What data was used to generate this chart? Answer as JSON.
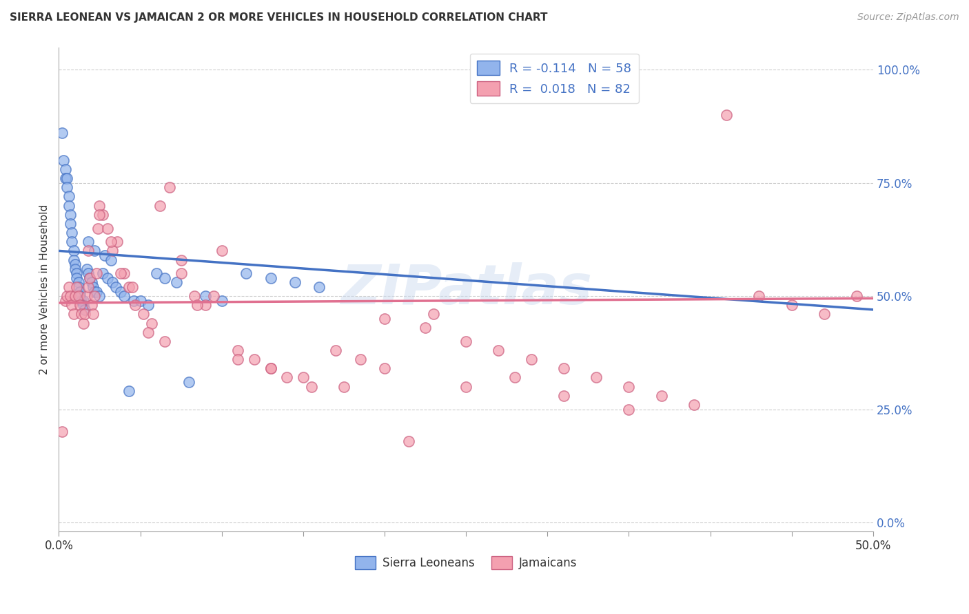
{
  "title": "SIERRA LEONEAN VS JAMAICAN 2 OR MORE VEHICLES IN HOUSEHOLD CORRELATION CHART",
  "source": "Source: ZipAtlas.com",
  "ylabel": "2 or more Vehicles in Household",
  "color_sierra": "#92B4EC",
  "color_jamaican": "#F4A0B0",
  "trendline_sierra_color": "#4472C4",
  "trendline_jamaican_color": "#E07090",
  "watermark": "ZIPatlas",
  "sierra_R": -0.114,
  "sierra_N": 58,
  "jamaican_R": 0.018,
  "jamaican_N": 82,
  "sierra_x": [
    0.002,
    0.003,
    0.004,
    0.004,
    0.005,
    0.005,
    0.006,
    0.006,
    0.007,
    0.007,
    0.008,
    0.008,
    0.009,
    0.009,
    0.01,
    0.01,
    0.011,
    0.011,
    0.012,
    0.012,
    0.013,
    0.013,
    0.014,
    0.015,
    0.015,
    0.016,
    0.017,
    0.018,
    0.019,
    0.02,
    0.021,
    0.022,
    0.023,
    0.025,
    0.027,
    0.03,
    0.033,
    0.035,
    0.038,
    0.04,
    0.043,
    0.046,
    0.05,
    0.055,
    0.06,
    0.065,
    0.072,
    0.08,
    0.09,
    0.1,
    0.115,
    0.13,
    0.145,
    0.16,
    0.018,
    0.022,
    0.028,
    0.032
  ],
  "sierra_y": [
    0.86,
    0.8,
    0.78,
    0.76,
    0.76,
    0.74,
    0.72,
    0.7,
    0.68,
    0.66,
    0.64,
    0.62,
    0.6,
    0.58,
    0.57,
    0.56,
    0.55,
    0.54,
    0.53,
    0.52,
    0.51,
    0.5,
    0.49,
    0.49,
    0.48,
    0.47,
    0.56,
    0.55,
    0.54,
    0.53,
    0.52,
    0.51,
    0.51,
    0.5,
    0.55,
    0.54,
    0.53,
    0.52,
    0.51,
    0.5,
    0.29,
    0.49,
    0.49,
    0.48,
    0.55,
    0.54,
    0.53,
    0.31,
    0.5,
    0.49,
    0.55,
    0.54,
    0.53,
    0.52,
    0.62,
    0.6,
    0.59,
    0.58
  ],
  "jamaican_x": [
    0.002,
    0.004,
    0.005,
    0.006,
    0.007,
    0.008,
    0.009,
    0.01,
    0.011,
    0.012,
    0.013,
    0.014,
    0.015,
    0.016,
    0.017,
    0.018,
    0.019,
    0.02,
    0.021,
    0.022,
    0.023,
    0.024,
    0.025,
    0.027,
    0.03,
    0.033,
    0.036,
    0.04,
    0.043,
    0.047,
    0.052,
    0.057,
    0.062,
    0.068,
    0.075,
    0.083,
    0.09,
    0.1,
    0.11,
    0.12,
    0.13,
    0.14,
    0.155,
    0.17,
    0.185,
    0.2,
    0.215,
    0.23,
    0.25,
    0.27,
    0.29,
    0.31,
    0.33,
    0.35,
    0.37,
    0.39,
    0.41,
    0.43,
    0.45,
    0.47,
    0.49,
    0.505,
    0.018,
    0.025,
    0.032,
    0.038,
    0.045,
    0.055,
    0.065,
    0.075,
    0.085,
    0.095,
    0.11,
    0.13,
    0.15,
    0.175,
    0.2,
    0.225,
    0.25,
    0.28,
    0.31,
    0.35
  ],
  "jamaican_y": [
    0.2,
    0.49,
    0.5,
    0.52,
    0.5,
    0.48,
    0.46,
    0.5,
    0.52,
    0.5,
    0.48,
    0.46,
    0.44,
    0.46,
    0.5,
    0.52,
    0.54,
    0.48,
    0.46,
    0.5,
    0.55,
    0.65,
    0.7,
    0.68,
    0.65,
    0.6,
    0.62,
    0.55,
    0.52,
    0.48,
    0.46,
    0.44,
    0.7,
    0.74,
    0.55,
    0.5,
    0.48,
    0.6,
    0.38,
    0.36,
    0.34,
    0.32,
    0.3,
    0.38,
    0.36,
    0.34,
    0.18,
    0.46,
    0.4,
    0.38,
    0.36,
    0.34,
    0.32,
    0.3,
    0.28,
    0.26,
    0.9,
    0.5,
    0.48,
    0.46,
    0.5,
    0.5,
    0.6,
    0.68,
    0.62,
    0.55,
    0.52,
    0.42,
    0.4,
    0.58,
    0.48,
    0.5,
    0.36,
    0.34,
    0.32,
    0.3,
    0.45,
    0.43,
    0.3,
    0.32,
    0.28,
    0.25
  ],
  "xlim": [
    0.0,
    0.5
  ],
  "ylim": [
    -0.02,
    1.05
  ],
  "ytick_vals": [
    0.0,
    0.25,
    0.5,
    0.75,
    1.0
  ],
  "ytick_labels_right": [
    "0.0%",
    "25.0%",
    "50.0%",
    "75.0%",
    "100.0%"
  ],
  "xtick_vals": [
    0.0,
    0.05,
    0.1,
    0.15,
    0.2,
    0.25,
    0.3,
    0.35,
    0.4,
    0.45,
    0.5
  ],
  "trendline_sierra_x0": 0.0,
  "trendline_sierra_x1": 0.5,
  "trendline_sierra_y0": 0.6,
  "trendline_sierra_y1": 0.47,
  "trendline_jamaican_x0": 0.0,
  "trendline_jamaican_x1": 0.5,
  "trendline_jamaican_y0": 0.485,
  "trendline_jamaican_y1": 0.495,
  "dot_size": 120,
  "dot_alpha": 0.7,
  "dot_linewidth": 1.2
}
